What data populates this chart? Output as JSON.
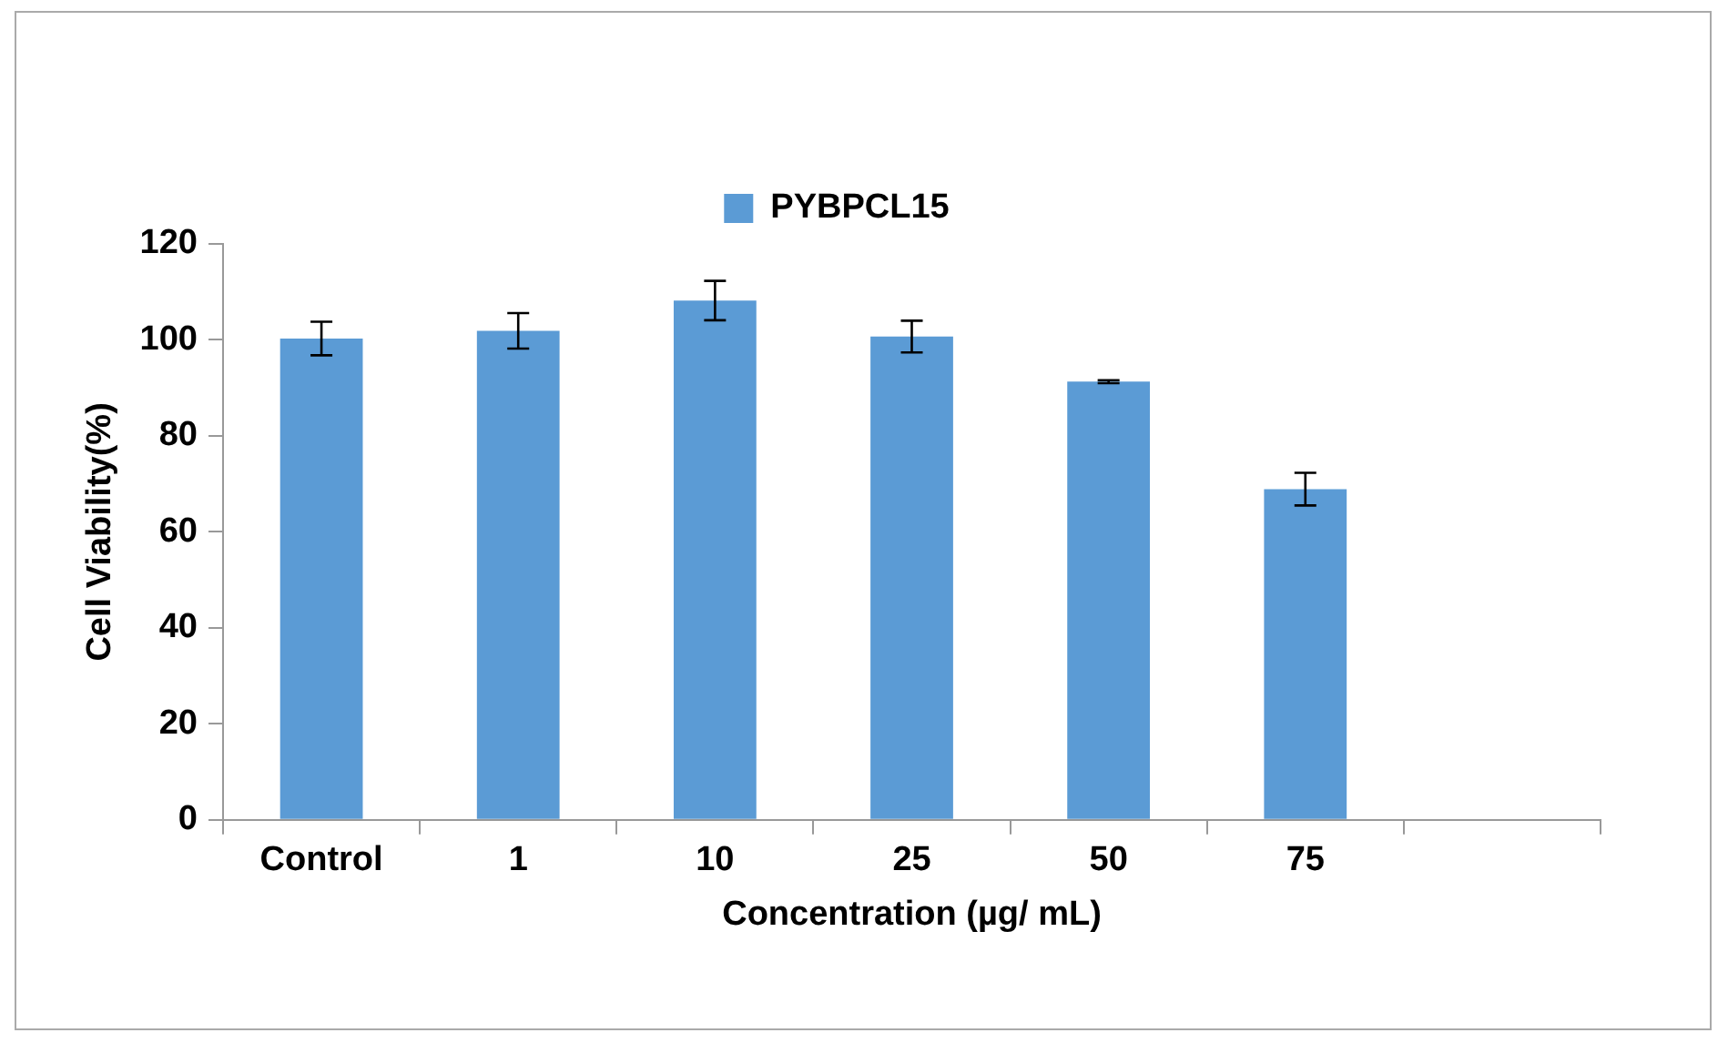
{
  "chart_data": {
    "type": "bar",
    "xlabel": "Concentration (µg/ mL)",
    "ylabel": "Cell Viability(%)",
    "categories": [
      "Control",
      "1",
      "10",
      "25",
      "50",
      "75",
      null
    ],
    "series": [
      {
        "name": "PYBPCL15",
        "color": "#5b9bd5",
        "values": [
          100.3,
          101.9,
          108.2,
          100.7,
          91.3,
          68.9,
          null
        ],
        "errors": [
          3.5,
          3.7,
          4.1,
          3.3,
          0.3,
          3.4,
          null
        ]
      }
    ],
    "ylim": [
      0,
      120
    ],
    "yticks": [
      0,
      20,
      40,
      60,
      80,
      100,
      120
    ],
    "grid": false,
    "legend": "top"
  }
}
